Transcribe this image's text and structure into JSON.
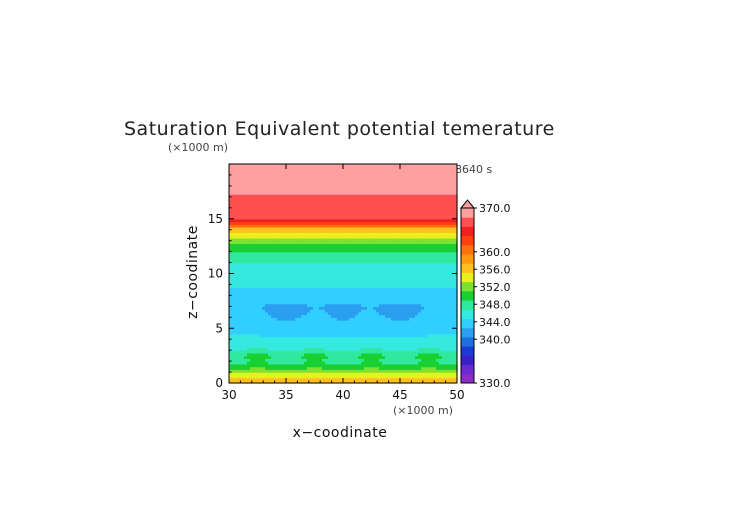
{
  "chart_data": {
    "type": "heatmap",
    "title": "Saturation Equivalent potential temerature",
    "time_label": "8640 s",
    "xlabel": "x−coodinate",
    "ylabel": "z−coodinate",
    "x_unit": "(×1000 m)",
    "y_unit": "(×1000 m)",
    "xlim": [
      30,
      50
    ],
    "ylim": [
      0,
      20
    ],
    "x_ticks": [
      30,
      35,
      40,
      45,
      50
    ],
    "y_ticks": [
      0,
      5,
      10,
      15
    ],
    "grid": false,
    "colorbar": {
      "range": [
        330,
        370
      ],
      "extend": "max",
      "tick_labels": [
        "370.0",
        "360.0",
        "356.0",
        "352.0",
        "348.0",
        "344.0",
        "340.0",
        "330.0"
      ],
      "tick_values": [
        370,
        360,
        356,
        352,
        348,
        344,
        340,
        330
      ]
    },
    "field_profile": {
      "z_km": [
        0,
        0.5,
        1.0,
        1.5,
        2.0,
        2.5,
        3.0,
        3.5,
        4.0,
        5.0,
        6.0,
        7.0,
        8.0,
        9.0,
        10.0,
        11.0,
        12.0,
        13.0,
        14.0,
        14.6,
        15.0,
        20.0
      ],
      "theta_es_K": [
        357,
        355,
        353,
        350,
        348,
        349,
        347,
        346,
        345,
        344.5,
        343.5,
        343,
        344,
        345,
        346,
        347,
        349,
        352,
        356,
        362,
        366,
        370
      ]
    }
  },
  "colors": {
    "scale": [
      "#8e2cc8",
      "#6a2cd0",
      "#3a20c8",
      "#1a3ad8",
      "#1f6fe0",
      "#2b9ef0",
      "#30cfff",
      "#35e8e0",
      "#30e8a0",
      "#18d030",
      "#7ee030",
      "#e8f020",
      "#ffc020",
      "#ff9a10",
      "#ff7010",
      "#ff4010",
      "#f02020",
      "#ff5050",
      "#ffa0a0"
    ]
  }
}
